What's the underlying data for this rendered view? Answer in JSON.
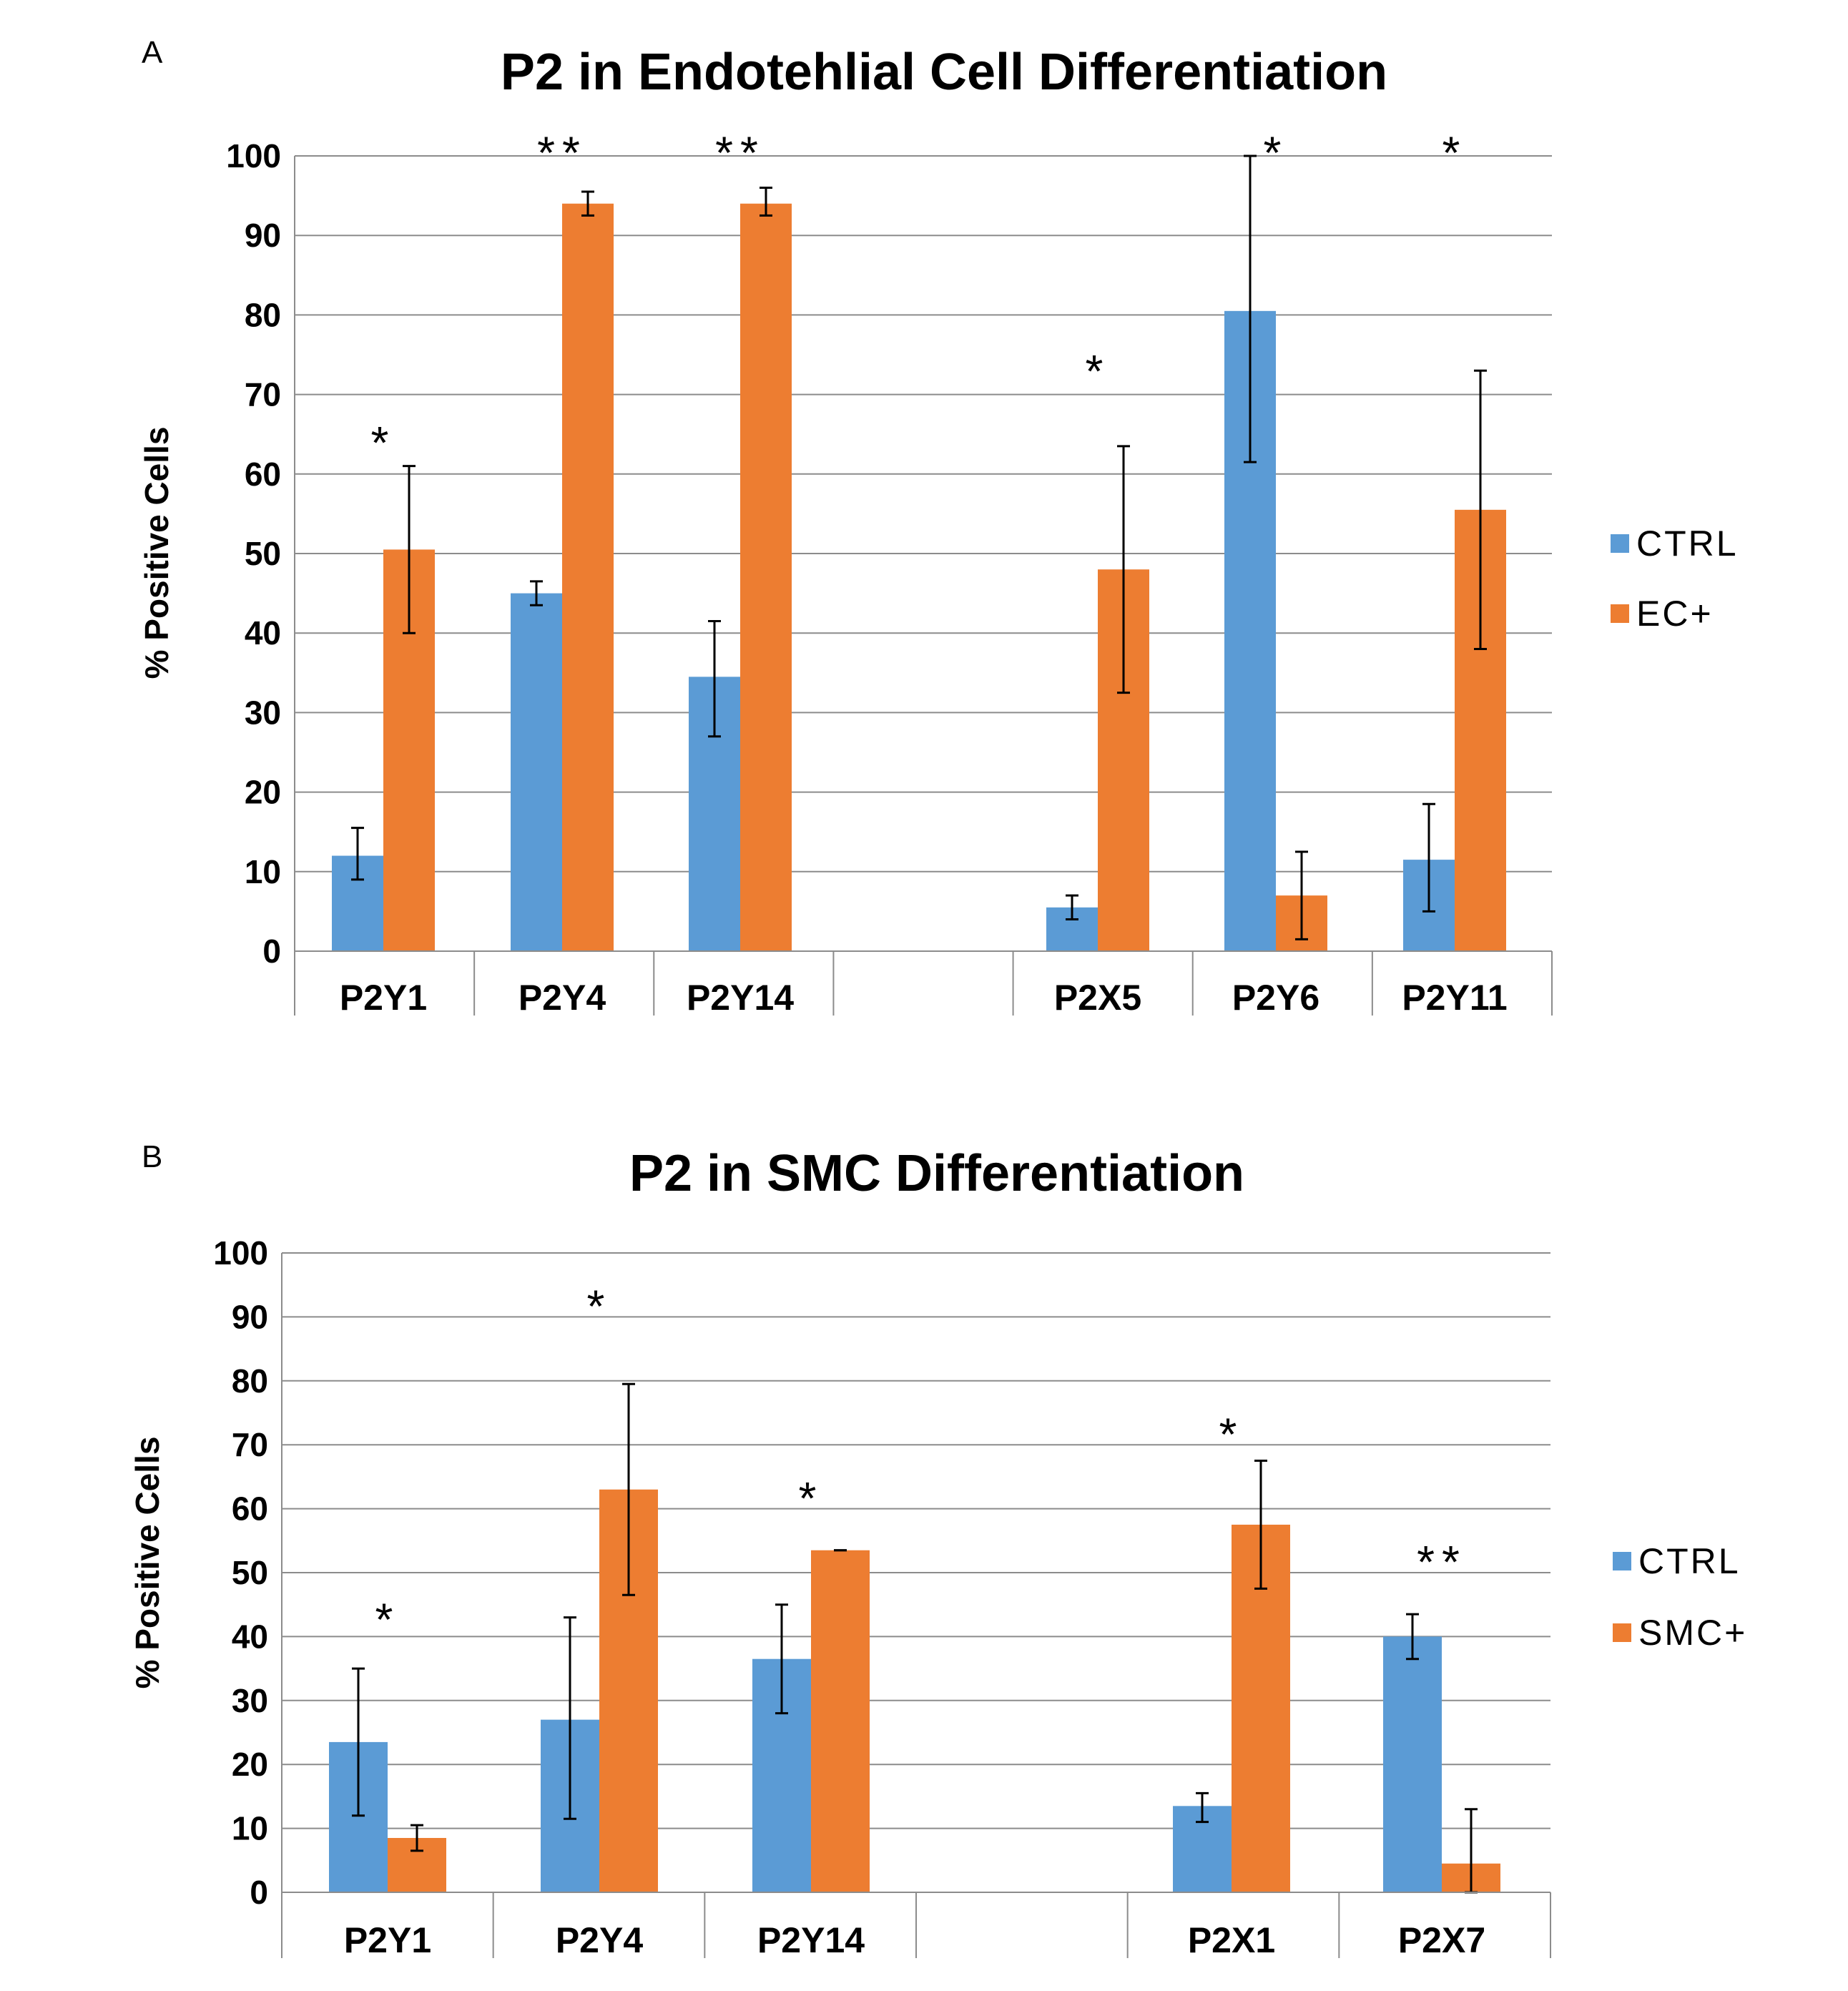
{
  "chart_data": [
    {
      "panel_label": "A",
      "type": "bar",
      "title": "P2 in Endotehlial Cell Differentiation",
      "ylabel": "% Positive Cells",
      "xlabel": "",
      "ylim": [
        0,
        100
      ],
      "yticks": [
        0,
        10,
        20,
        30,
        40,
        50,
        60,
        70,
        80,
        90,
        100
      ],
      "grid": true,
      "legend_position": "right",
      "categories": [
        "P2Y1",
        "P2Y4",
        "P2Y14",
        "",
        "P2X5",
        "P2Y6",
        "P2Y11"
      ],
      "series": [
        {
          "name": "CTRL",
          "color": "#5B9BD5",
          "values": [
            12,
            45,
            34.5,
            null,
            5.5,
            80.5,
            11.5
          ],
          "err_low": [
            9,
            43.5,
            27,
            null,
            4,
            61.5,
            5
          ],
          "err_high": [
            15.5,
            46.5,
            41.5,
            null,
            7,
            100,
            18.5
          ]
        },
        {
          "name": "EC+",
          "color": "#ED7D31",
          "values": [
            50.5,
            94,
            94,
            null,
            48,
            7,
            55.5
          ],
          "err_low": [
            40,
            92.5,
            92.5,
            null,
            32.5,
            1.5,
            38
          ],
          "err_high": [
            61,
            95.5,
            96,
            null,
            63.5,
            12.5,
            73
          ]
        }
      ],
      "annotations": [
        {
          "category_index": 0,
          "text": "*",
          "y": 65
        },
        {
          "category_index": 1,
          "text": "**",
          "y": 101.5
        },
        {
          "category_index": 2,
          "text": "**",
          "y": 101.5
        },
        {
          "category_index": 4,
          "text": "*",
          "y": 74
        },
        {
          "category_index": 5,
          "text": "*",
          "y": 101.5
        },
        {
          "category_index": 6,
          "text": "*",
          "y": 101.5
        }
      ]
    },
    {
      "panel_label": "B",
      "type": "bar",
      "title": "P2 in SMC Differentiation",
      "ylabel": "% Positive Cells",
      "xlabel": "",
      "ylim": [
        0,
        100
      ],
      "yticks": [
        0,
        10,
        20,
        30,
        40,
        50,
        60,
        70,
        80,
        90,
        100
      ],
      "grid": true,
      "legend_position": "right",
      "categories": [
        "P2Y1",
        "P2Y4",
        "P2Y14",
        "",
        "P2X1",
        "P2X7"
      ],
      "series": [
        {
          "name": "CTRL",
          "color": "#5B9BD5",
          "values": [
            23.5,
            27,
            36.5,
            null,
            13.5,
            40
          ],
          "err_low": [
            12,
            11.5,
            28,
            null,
            11,
            36.5
          ],
          "err_high": [
            35,
            43,
            45,
            null,
            15.5,
            43.5
          ]
        },
        {
          "name": "SMC+",
          "color": "#ED7D31",
          "values": [
            8.5,
            63,
            53.5,
            null,
            57.5,
            4.5
          ],
          "err_low": [
            6.5,
            46.5,
            53.5,
            null,
            47.5,
            0
          ],
          "err_high": [
            10.5,
            79.5,
            53.5,
            null,
            67.5,
            13
          ]
        }
      ],
      "annotations": [
        {
          "category_index": 0,
          "text": "*",
          "y": 44
        },
        {
          "category_index": 1,
          "text": "*",
          "y": 93
        },
        {
          "category_index": 2,
          "text": "*",
          "y": 63
        },
        {
          "category_index": 4,
          "text": "*",
          "y": 73
        },
        {
          "category_index": 5,
          "text": "**",
          "y": 53
        }
      ]
    }
  ]
}
